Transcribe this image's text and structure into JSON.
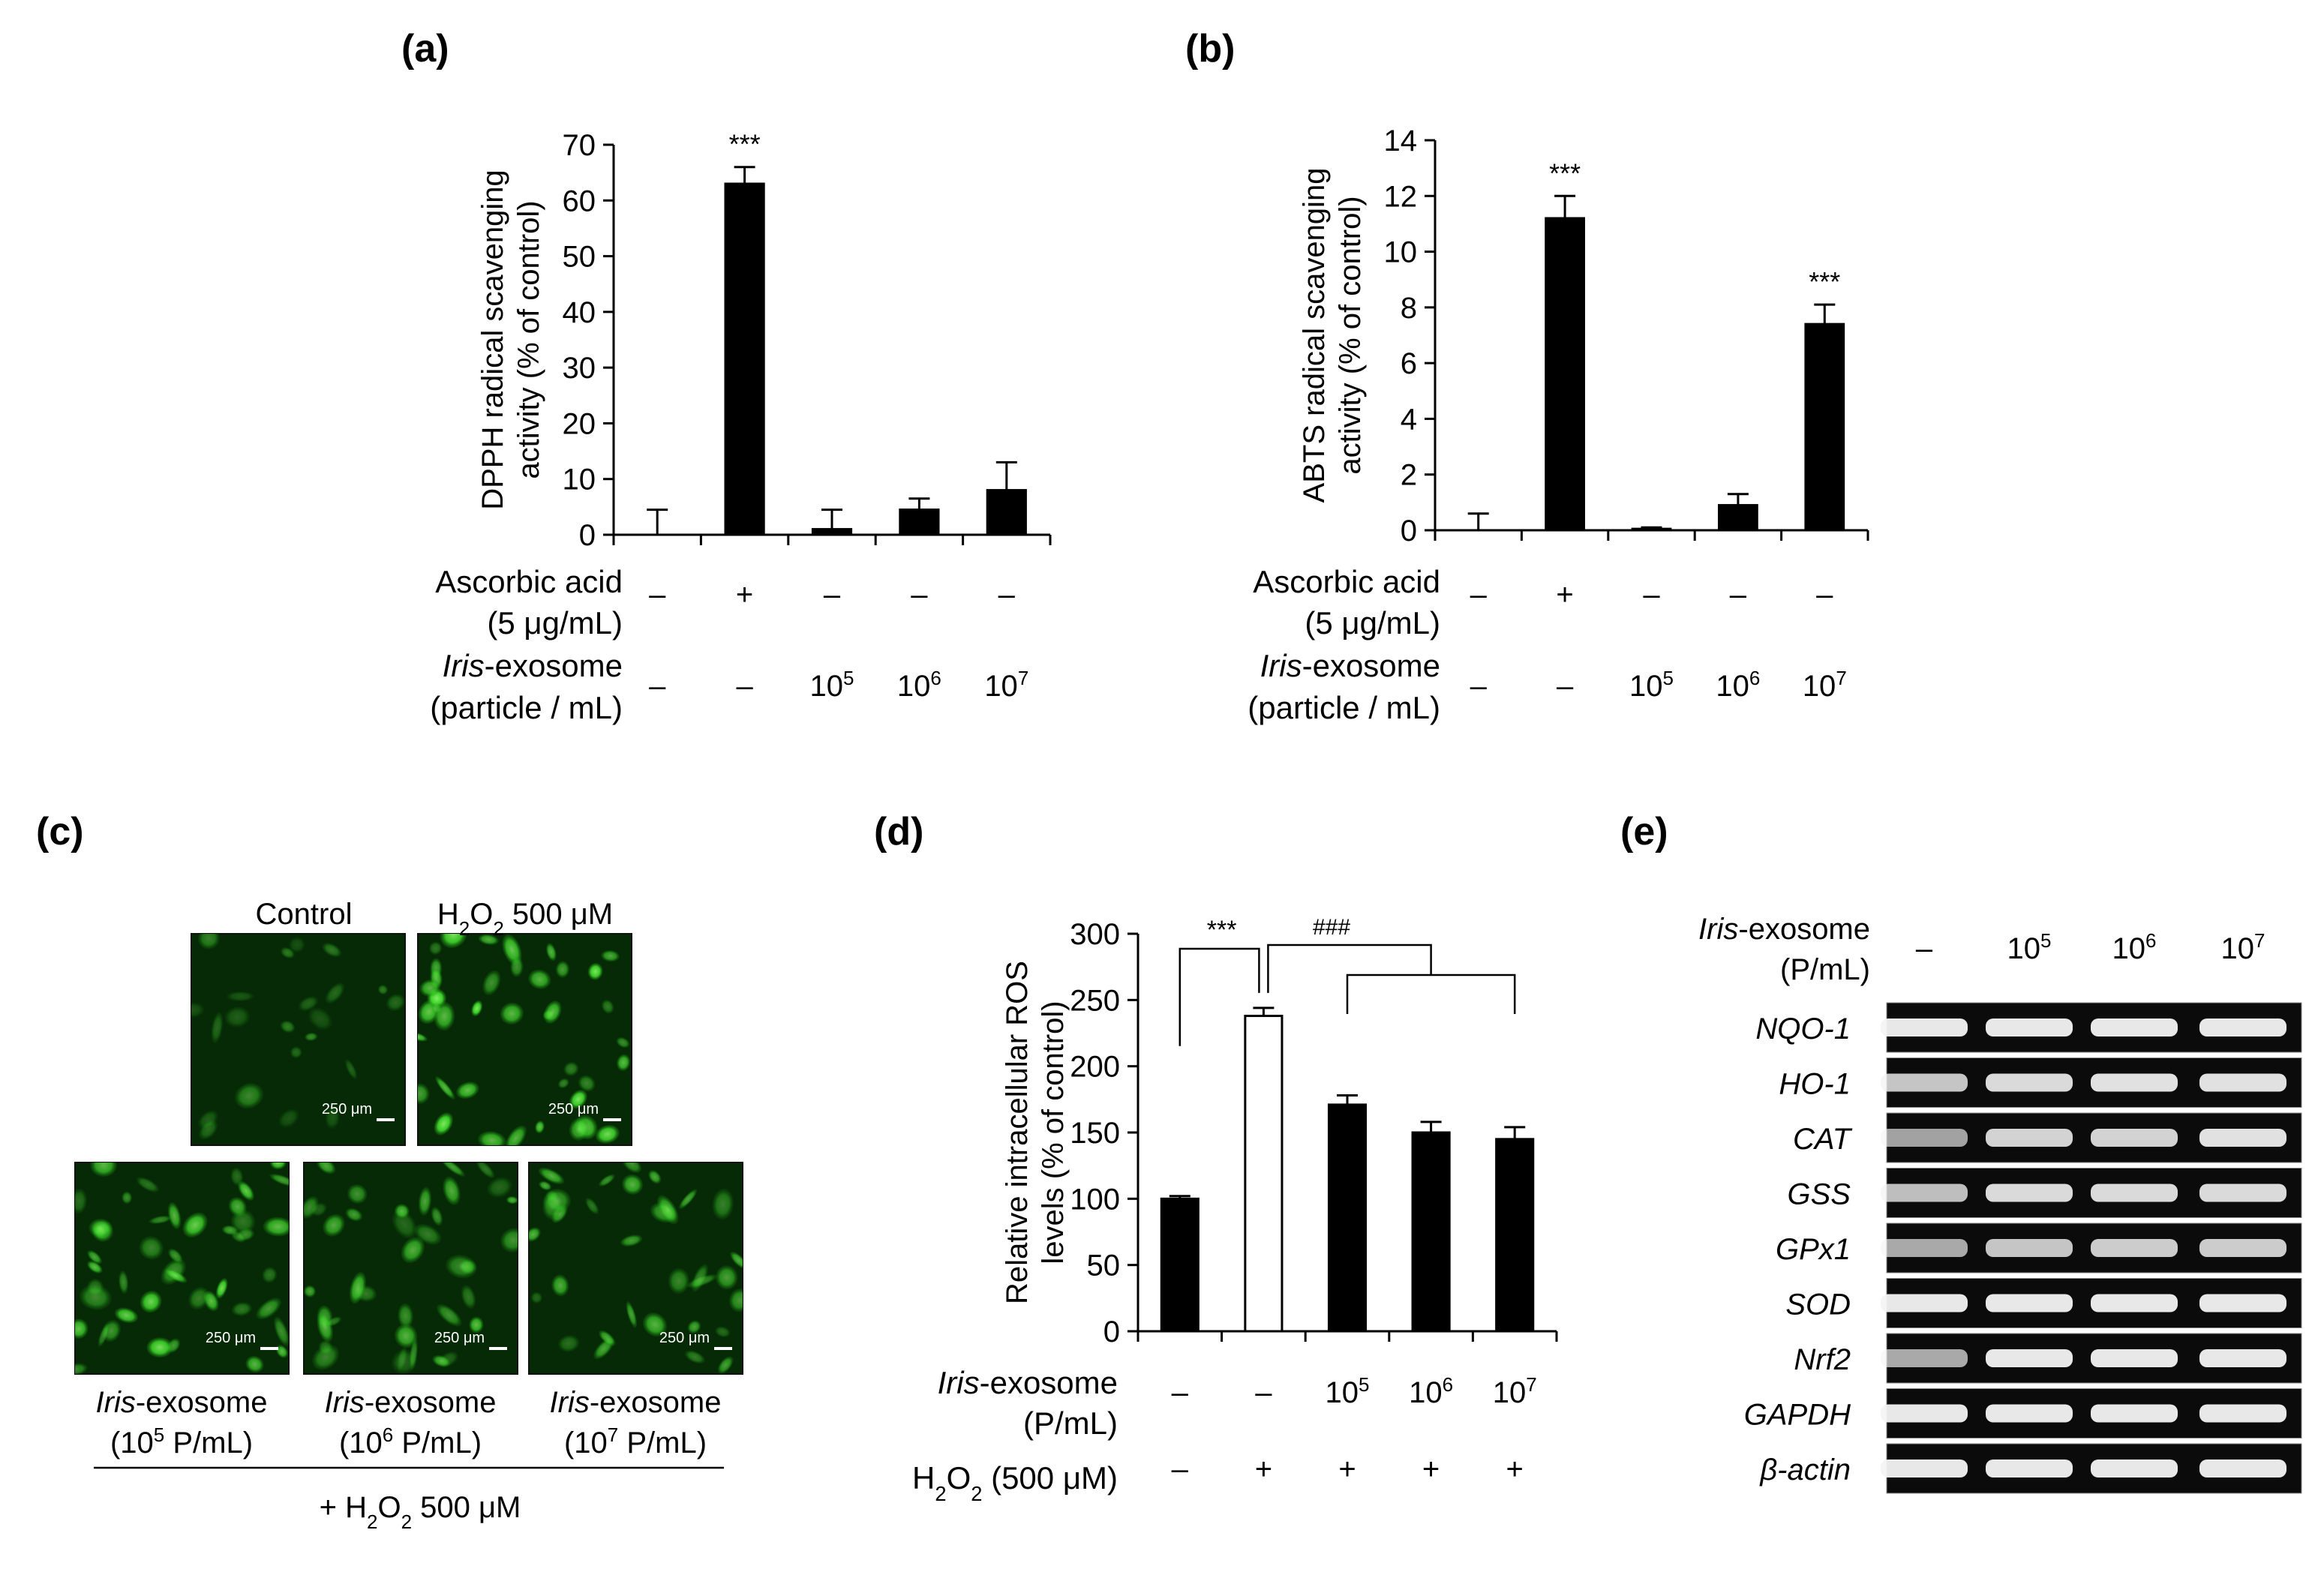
{
  "panels": {
    "a": {
      "letter": "(a)"
    },
    "b": {
      "letter": "(b)"
    },
    "c": {
      "letter": "(c)"
    },
    "d": {
      "letter": "(d)"
    },
    "e": {
      "letter": "(e)"
    }
  },
  "chart_data": [
    {
      "id": "a",
      "type": "bar",
      "ylabel_lines": [
        "DPPH radical scavenging",
        "activity  (% of control)"
      ],
      "ylim": [
        0,
        70
      ],
      "yticks": [
        0,
        10,
        20,
        30,
        40,
        50,
        60,
        70
      ],
      "values": [
        0,
        63,
        1,
        4.5,
        8
      ],
      "errors": [
        4.5,
        3,
        3.5,
        2,
        5
      ],
      "colors": [
        "#000000",
        "#000000",
        "#000000",
        "#000000",
        "#000000"
      ],
      "significance": [
        "",
        "***",
        "",
        "",
        ""
      ],
      "conditions": [
        {
          "lines": [
            "Ascorbic acid",
            "(5 μg/mL)"
          ],
          "values": [
            "–",
            "+",
            "–",
            "–",
            "–"
          ]
        },
        {
          "lines": [
            "-exosome",
            "(particle / mL)"
          ],
          "italic_prefix": "Iris",
          "values": [
            "–",
            "–",
            "10",
            "10",
            "10"
          ],
          "superscripts": [
            "",
            "",
            "5",
            "6",
            "7"
          ]
        }
      ]
    },
    {
      "id": "b",
      "type": "bar",
      "ylabel_lines": [
        "ABTS radical scavenging",
        "activity (% of control)"
      ],
      "ylim": [
        0,
        14
      ],
      "yticks": [
        0,
        2,
        4,
        6,
        8,
        10,
        12,
        14
      ],
      "values": [
        0,
        11.2,
        0.05,
        0.9,
        7.4
      ],
      "errors": [
        0.6,
        0.8,
        0.05,
        0.4,
        0.7
      ],
      "colors": [
        "#000000",
        "#000000",
        "#000000",
        "#000000",
        "#000000"
      ],
      "significance": [
        "",
        "***",
        "",
        "",
        "***"
      ],
      "conditions": [
        {
          "lines": [
            "Ascorbic acid",
            "(5 μg/mL)"
          ],
          "values": [
            "–",
            "+",
            "–",
            "–",
            "–"
          ]
        },
        {
          "lines": [
            "-exosome",
            "(particle / mL)"
          ],
          "italic_prefix": "Iris",
          "values": [
            "–",
            "–",
            "10",
            "10",
            "10"
          ],
          "superscripts": [
            "",
            "",
            "5",
            "6",
            "7"
          ]
        }
      ]
    },
    {
      "id": "d",
      "type": "bar",
      "ylabel_lines": [
        "Relative intracellular ROS",
        "levels (% of control)"
      ],
      "ylim": [
        0,
        300
      ],
      "yticks": [
        0,
        50,
        100,
        150,
        200,
        250,
        300
      ],
      "values": [
        100,
        238,
        171,
        150,
        145
      ],
      "errors": [
        2,
        6,
        7,
        8,
        9
      ],
      "colors": [
        "#000000",
        "#ffffff",
        "#000000",
        "#000000",
        "#000000"
      ],
      "brackets": [
        "***",
        "###"
      ],
      "conditions": [
        {
          "lines": [
            "-exosome",
            "(P/mL)"
          ],
          "italic_prefix": "Iris",
          "values": [
            "–",
            "–",
            "10",
            "10",
            "10"
          ],
          "superscripts": [
            "",
            "",
            "5",
            "6",
            "7"
          ]
        },
        {
          "lines": [
            "H",
            "2",
            "O",
            "2",
            " (500 μM)"
          ],
          "values": [
            "–",
            "+",
            "+",
            "+",
            "+"
          ]
        }
      ]
    }
  ],
  "panel_c": {
    "top_labels": {
      "control": "Control",
      "h2o2": [
        "H",
        "2",
        "O",
        "2",
        " 500 μM"
      ]
    },
    "scale_bar": "250 μm",
    "bottom_labels": [
      {
        "italic": "Iris",
        "rest": "-exosome",
        "line2": [
          "(10",
          "5",
          " P/mL)"
        ]
      },
      {
        "italic": "Iris",
        "rest": "-exosome",
        "line2": [
          "(10",
          "6",
          " P/mL)"
        ]
      },
      {
        "italic": "Iris",
        "rest": "-exosome",
        "line2": [
          "(10",
          "7",
          " P/mL)"
        ]
      }
    ],
    "footer": [
      "+ H",
      "2",
      "O",
      "2",
      " 500 μM"
    ]
  },
  "panel_e": {
    "header_italic": "Iris",
    "header_rest": "-exosome",
    "header_line2": "(P/mL)",
    "lanes": [
      {
        "base": "–",
        "sup": ""
      },
      {
        "base": "10",
        "sup": "5"
      },
      {
        "base": "10",
        "sup": "6"
      },
      {
        "base": "10",
        "sup": "7"
      }
    ],
    "genes": [
      "NQO-1",
      "HO-1",
      "CAT",
      "GSS",
      "GPx1",
      "SOD",
      "Nrf2",
      "GAPDH",
      "β-actin"
    ],
    "band_intensity": [
      [
        1,
        1,
        1,
        1
      ],
      [
        0.75,
        0.9,
        0.95,
        0.95
      ],
      [
        0.5,
        0.85,
        0.85,
        0.95
      ],
      [
        0.7,
        0.9,
        0.9,
        0.9
      ],
      [
        0.55,
        0.75,
        0.8,
        0.8
      ],
      [
        1,
        1,
        1,
        1
      ],
      [
        0.55,
        1,
        1,
        1
      ],
      [
        1,
        1,
        1,
        1
      ],
      [
        1,
        1,
        1,
        1
      ]
    ]
  }
}
